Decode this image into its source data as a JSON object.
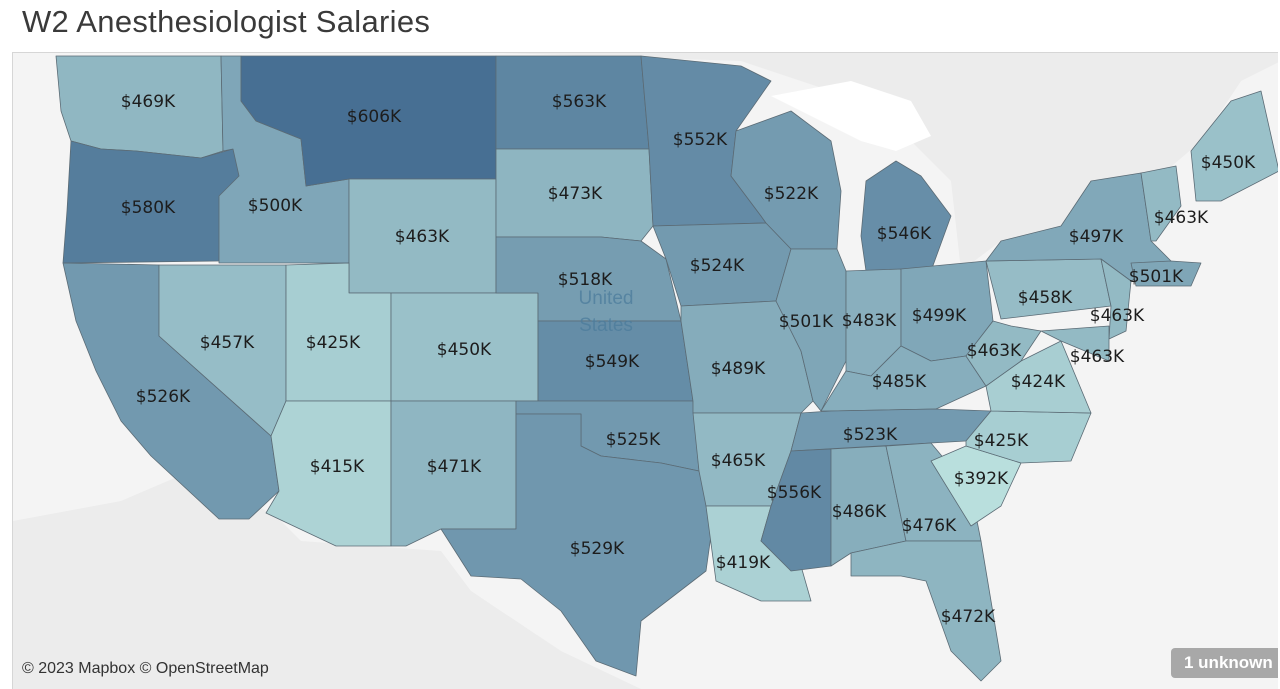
{
  "title": "W2 Anesthesiologist Salaries",
  "attribution": "© 2023 Mapbox © OpenStreetMap",
  "unknown_badge": "1 unknown",
  "basemap_labels": {
    "country_line1": "United",
    "country_line2": "States"
  },
  "colors": {
    "low": "#b9dfdd",
    "high": "#476f93",
    "border": "#5b6b75",
    "land": "#ececec",
    "water": "#ffffff"
  },
  "states": [
    {
      "name": "Washington",
      "value": 469,
      "label": "$469K"
    },
    {
      "name": "Oregon",
      "value": 580,
      "label": "$580K"
    },
    {
      "name": "California",
      "value": 526,
      "label": "$526K"
    },
    {
      "name": "Idaho",
      "value": 500,
      "label": "$500K"
    },
    {
      "name": "Nevada",
      "value": 457,
      "label": "$457K"
    },
    {
      "name": "Montana",
      "value": 606,
      "label": "$606K"
    },
    {
      "name": "Wyoming",
      "value": 463,
      "label": "$463K"
    },
    {
      "name": "Utah",
      "value": 425,
      "label": "$425K"
    },
    {
      "name": "Arizona",
      "value": 415,
      "label": "$415K"
    },
    {
      "name": "Colorado",
      "value": 450,
      "label": "$450K"
    },
    {
      "name": "New Mexico",
      "value": 471,
      "label": "$471K"
    },
    {
      "name": "North Dakota",
      "value": 563,
      "label": "$563K"
    },
    {
      "name": "South Dakota",
      "value": 473,
      "label": "$473K"
    },
    {
      "name": "Nebraska",
      "value": 518,
      "label": "$518K"
    },
    {
      "name": "Kansas",
      "value": 549,
      "label": "$549K"
    },
    {
      "name": "Oklahoma",
      "value": 525,
      "label": "$525K"
    },
    {
      "name": "Texas",
      "value": 529,
      "label": "$529K"
    },
    {
      "name": "Minnesota",
      "value": 552,
      "label": "$552K"
    },
    {
      "name": "Iowa",
      "value": 524,
      "label": "$524K"
    },
    {
      "name": "Missouri",
      "value": 489,
      "label": "$489K"
    },
    {
      "name": "Arkansas",
      "value": 465,
      "label": "$465K"
    },
    {
      "name": "Louisiana",
      "value": 419,
      "label": "$419K"
    },
    {
      "name": "Wisconsin",
      "value": 522,
      "label": "$522K"
    },
    {
      "name": "Illinois",
      "value": 501,
      "label": "$501K"
    },
    {
      "name": "Michigan",
      "value": 546,
      "label": "$546K"
    },
    {
      "name": "Indiana",
      "value": 483,
      "label": "$483K"
    },
    {
      "name": "Ohio",
      "value": 499,
      "label": "$499K"
    },
    {
      "name": "Kentucky",
      "value": 485,
      "label": "$485K"
    },
    {
      "name": "Tennessee",
      "value": 523,
      "label": "$523K"
    },
    {
      "name": "Mississippi",
      "value": 556,
      "label": "$556K"
    },
    {
      "name": "Alabama",
      "value": 486,
      "label": "$486K"
    },
    {
      "name": "Georgia",
      "value": 476,
      "label": "$476K"
    },
    {
      "name": "Florida",
      "value": 472,
      "label": "$472K"
    },
    {
      "name": "South Carolina",
      "value": 392,
      "label": "$392K"
    },
    {
      "name": "North Carolina",
      "value": 425,
      "label": "$425K"
    },
    {
      "name": "Virginia",
      "value": 424,
      "label": "$424K"
    },
    {
      "name": "West Virginia",
      "value": 463,
      "label": "$463K"
    },
    {
      "name": "Pennsylvania",
      "value": 458,
      "label": "$458K"
    },
    {
      "name": "New York",
      "value": 497,
      "label": "$497K"
    },
    {
      "name": "New Jersey",
      "value": 463,
      "label": "$463K"
    },
    {
      "name": "Maryland",
      "value": 463,
      "label": "$463K"
    },
    {
      "name": "Connecticut",
      "value": 501,
      "label": "$501K"
    },
    {
      "name": "Vermont",
      "value": 463,
      "label": "$463K"
    },
    {
      "name": "Maine",
      "value": 450,
      "label": "$450K"
    }
  ]
}
